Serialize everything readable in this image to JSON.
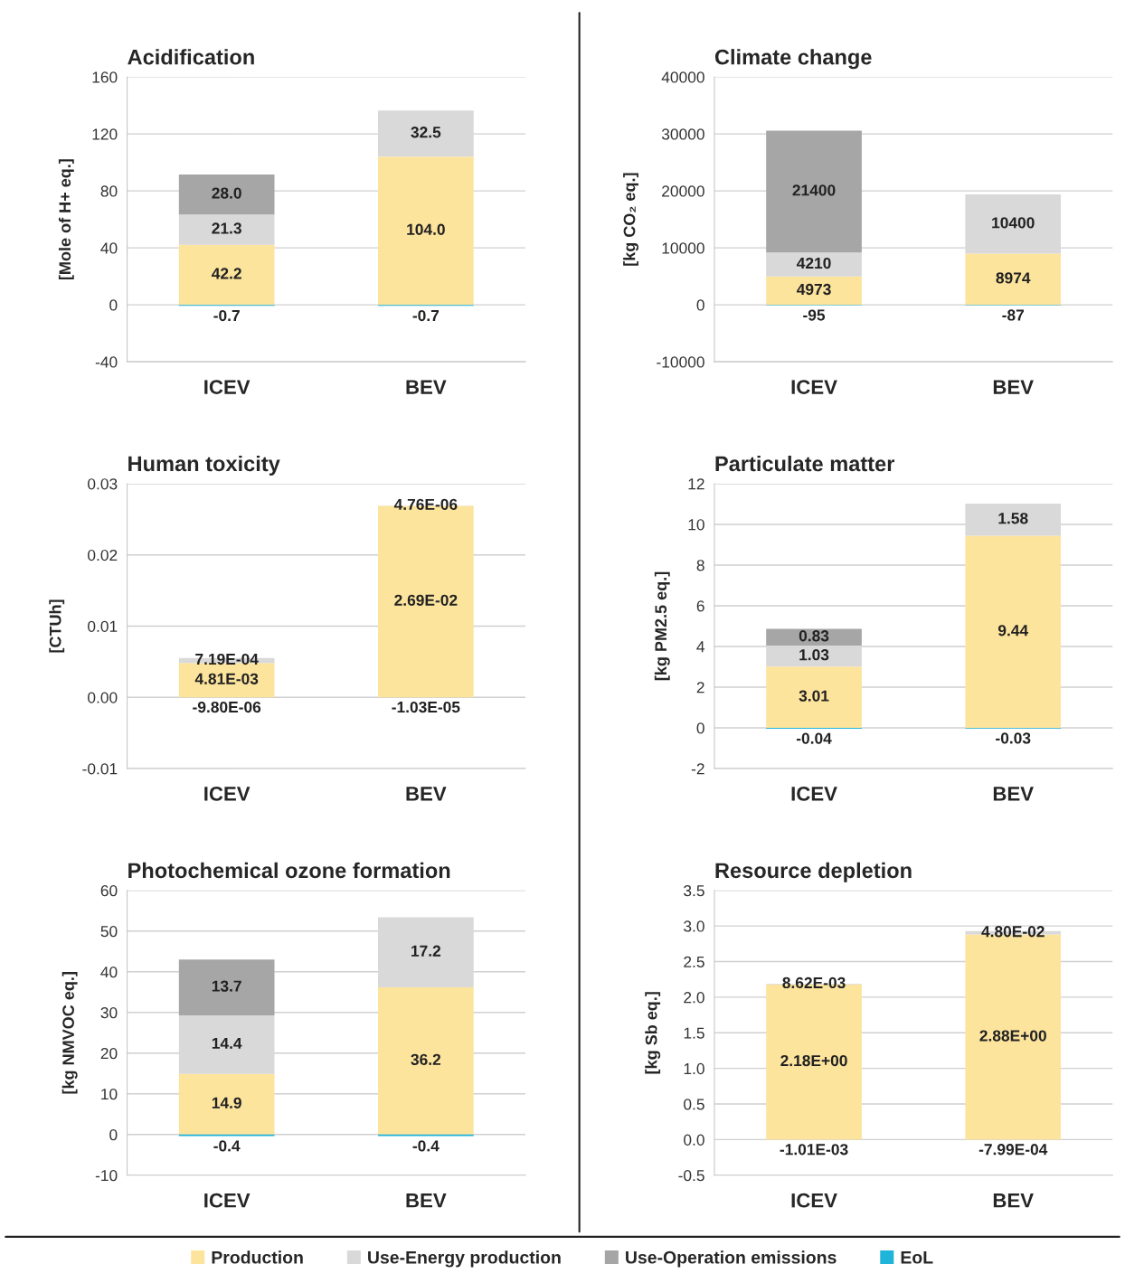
{
  "chart_data": [
    {
      "type": "bar",
      "title": "Acidification",
      "ylabel": "[Mole of H+ eq.]",
      "categories": [
        "ICEV",
        "BEV"
      ],
      "stacked": true,
      "grid": "y",
      "ylim": [
        -40,
        160
      ],
      "yticks": [
        -40,
        0,
        40,
        80,
        120,
        160
      ],
      "series": [
        {
          "color": "#fde49d",
          "values": [
            42.2,
            104.0
          ],
          "value_labels": [
            "42.2",
            "104.0"
          ]
        },
        {
          "color": "#d9d9d9",
          "values": [
            21.3,
            32.5
          ],
          "value_labels": [
            "21.3",
            "32.5"
          ]
        },
        {
          "color": "#a6a6a6",
          "values": [
            28.0,
            null
          ],
          "value_labels": [
            "28.0",
            null
          ]
        },
        {
          "color": "#1fb4d8",
          "values": [
            -0.7,
            -0.7
          ],
          "value_labels": [
            "-0.7",
            "-0.7"
          ]
        }
      ]
    },
    {
      "type": "bar",
      "title": "Climate change",
      "ylabel": "[kg CO₂ eq.]",
      "categories": [
        "ICEV",
        "BEV"
      ],
      "stacked": true,
      "grid": "y",
      "ylim": [
        -10000,
        40000
      ],
      "yticks": [
        -10000,
        0,
        10000,
        20000,
        30000,
        40000
      ],
      "series": [
        {
          "color": "#fde49d",
          "values": [
            4973,
            8974
          ],
          "value_labels": [
            "4973",
            "8974"
          ]
        },
        {
          "color": "#d9d9d9",
          "values": [
            4210,
            10400
          ],
          "value_labels": [
            "4210",
            "10400"
          ]
        },
        {
          "color": "#a6a6a6",
          "values": [
            21400,
            null
          ],
          "value_labels": [
            "21400",
            null
          ]
        },
        {
          "color": "#1fb4d8",
          "values": [
            -95,
            -87
          ],
          "value_labels": [
            "-95",
            "-87"
          ]
        }
      ]
    },
    {
      "type": "bar",
      "title": "Human toxicity",
      "ylabel": "[CTUh]",
      "categories": [
        "ICEV",
        "BEV"
      ],
      "stacked": true,
      "grid": "y",
      "ylim": [
        -0.01,
        0.03
      ],
      "yticks": [
        -0.01,
        {
          "value": 0,
          "label": "0.00"
        },
        0.01,
        0.02,
        0.03
      ],
      "series": [
        {
          "color": "#fde49d",
          "values": [
            0.00481,
            0.0269
          ],
          "value_labels": [
            "4.81E-03",
            "2.69E-02"
          ]
        },
        {
          "color": "#d9d9d9",
          "values": [
            0.000719,
            4.76e-06
          ],
          "value_labels": [
            "7.19E-04",
            "4.76E-06"
          ]
        },
        {
          "color": "#1fb4d8",
          "values": [
            -9.8e-06,
            -1.03e-05
          ],
          "value_labels": [
            "-9.80E-06",
            "-1.03E-05"
          ]
        }
      ]
    },
    {
      "type": "bar",
      "title": "Particulate matter",
      "ylabel": "[kg PM2.5 eq.]",
      "categories": [
        "ICEV",
        "BEV"
      ],
      "stacked": true,
      "grid": "y",
      "ylim": [
        -2,
        12
      ],
      "yticks": [
        -2,
        0,
        2,
        4,
        6,
        8,
        10,
        12
      ],
      "series": [
        {
          "color": "#fde49d",
          "values": [
            3.01,
            9.44
          ],
          "value_labels": [
            "3.01",
            "9.44"
          ]
        },
        {
          "color": "#d9d9d9",
          "values": [
            1.03,
            1.58
          ],
          "value_labels": [
            "1.03",
            "1.58"
          ]
        },
        {
          "color": "#a6a6a6",
          "values": [
            0.83,
            null
          ],
          "value_labels": [
            "0.83",
            null
          ]
        },
        {
          "color": "#1fb4d8",
          "values": [
            -0.04,
            -0.03
          ],
          "value_labels": [
            "-0.04",
            "-0.03"
          ]
        }
      ]
    },
    {
      "type": "bar",
      "title": "Photochemical ozone formation",
      "ylabel": "[kg NMVOC eq.]",
      "categories": [
        "ICEV",
        "BEV"
      ],
      "stacked": true,
      "grid": "y",
      "ylim": [
        -10,
        60
      ],
      "yticks": [
        -10,
        0,
        10,
        20,
        30,
        40,
        50,
        60
      ],
      "series": [
        {
          "color": "#fde49d",
          "values": [
            14.9,
            36.2
          ],
          "value_labels": [
            "14.9",
            "36.2"
          ]
        },
        {
          "color": "#d9d9d9",
          "values": [
            14.4,
            17.2
          ],
          "value_labels": [
            "14.4",
            "17.2"
          ]
        },
        {
          "color": "#a6a6a6",
          "values": [
            13.7,
            null
          ],
          "value_labels": [
            "13.7",
            null
          ]
        },
        {
          "color": "#1fb4d8",
          "values": [
            -0.4,
            -0.4
          ],
          "value_labels": [
            "-0.4",
            "-0.4"
          ]
        }
      ]
    },
    {
      "type": "bar",
      "title": "Resource depletion",
      "ylabel": "[kg Sb eq.]",
      "categories": [
        "ICEV",
        "BEV"
      ],
      "stacked": true,
      "grid": "y",
      "legend": "bottom",
      "ylim": [
        -0.5,
        3.5
      ],
      "yticks": [
        -0.5,
        {
          "value": 0,
          "label": "0.0"
        },
        0.5,
        {
          "value": 1,
          "label": "1.0"
        },
        1.5,
        {
          "value": 2,
          "label": "2.0"
        },
        2.5,
        {
          "value": 3,
          "label": "3.0"
        },
        3.5
      ],
      "series": [
        {
          "name": "Production",
          "color": "#fde49d",
          "values": [
            2.18,
            2.88
          ],
          "value_labels": [
            "2.18E+00",
            "2.88E+00"
          ]
        },
        {
          "name": "Use-Energy production",
          "color": "#d9d9d9",
          "values": [
            0.00862,
            0.048
          ],
          "value_labels": [
            "8.62E-03",
            "4.80E-02"
          ]
        },
        {
          "name": "Use-Operation emissions",
          "color": "#a6a6a6",
          "values": [
            null,
            null
          ]
        },
        {
          "name": "EoL",
          "color": "#1fb4d8",
          "values": [
            -0.00101,
            -0.000799
          ],
          "value_labels": [
            "-1.01E-03",
            "-7.99E-04"
          ]
        }
      ]
    }
  ]
}
